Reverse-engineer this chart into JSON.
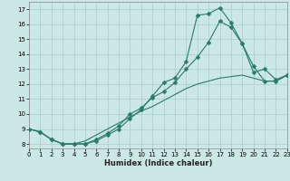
{
  "xlabel": "Humidex (Indice chaleur)",
  "background_color": "#cce8e4",
  "grid_color": "#aacccc",
  "line_color": "#2a7a6a",
  "xlim": [
    0,
    23
  ],
  "ylim": [
    7.7,
    17.5
  ],
  "xticks": [
    0,
    1,
    2,
    3,
    4,
    5,
    6,
    7,
    8,
    9,
    10,
    11,
    12,
    13,
    14,
    15,
    16,
    17,
    18,
    19,
    20,
    21,
    22,
    23
  ],
  "yticks": [
    8,
    9,
    10,
    11,
    12,
    13,
    14,
    15,
    16,
    17
  ],
  "curve1_x": [
    0,
    1,
    2,
    3,
    4,
    5,
    6,
    7,
    8,
    9,
    10,
    11,
    12,
    13,
    14,
    15,
    16,
    17,
    18,
    19,
    20,
    21,
    22,
    23
  ],
  "curve1_y": [
    9.0,
    8.8,
    8.3,
    8.0,
    8.0,
    8.0,
    8.2,
    8.6,
    9.0,
    9.7,
    10.3,
    11.2,
    12.1,
    12.4,
    13.5,
    16.6,
    16.7,
    17.1,
    16.1,
    14.7,
    13.2,
    12.2,
    12.2,
    12.6
  ],
  "curve2_x": [
    0,
    1,
    2,
    3,
    4,
    5,
    6,
    7,
    8,
    9,
    10,
    11,
    12,
    13,
    14,
    15,
    16,
    17,
    18,
    19,
    20,
    21,
    22,
    23
  ],
  "curve2_y": [
    9.0,
    8.8,
    8.3,
    8.0,
    8.0,
    8.0,
    8.3,
    8.7,
    9.2,
    10.0,
    10.4,
    11.1,
    11.5,
    12.1,
    13.0,
    13.8,
    14.8,
    16.2,
    15.8,
    14.7,
    12.8,
    13.0,
    12.3,
    12.6
  ],
  "curve3_x": [
    0,
    1,
    2,
    3,
    4,
    5,
    6,
    7,
    8,
    9,
    10,
    11,
    12,
    13,
    14,
    15,
    16,
    17,
    18,
    19,
    20,
    21,
    22,
    23
  ],
  "curve3_y": [
    9.0,
    8.8,
    8.3,
    8.0,
    8.0,
    8.2,
    8.6,
    9.0,
    9.4,
    9.8,
    10.2,
    10.5,
    10.9,
    11.3,
    11.7,
    12.0,
    12.2,
    12.4,
    12.5,
    12.6,
    12.4,
    12.2,
    12.2,
    12.6
  ],
  "marker_style": "D",
  "marker_size": 2.5
}
